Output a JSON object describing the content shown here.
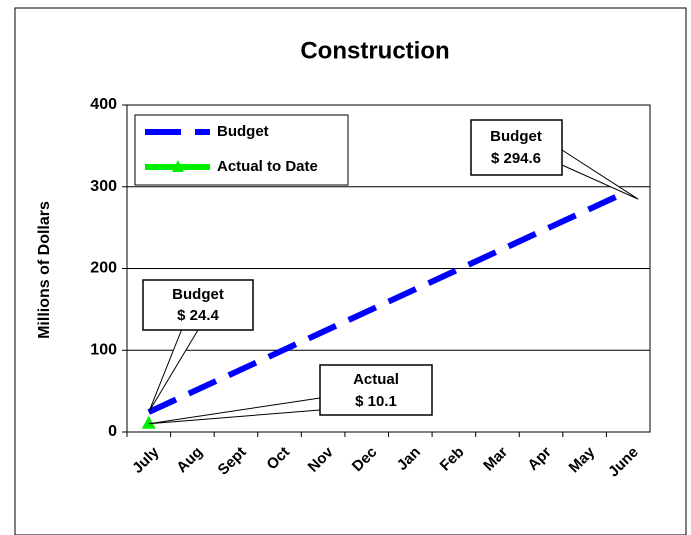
{
  "chart_data": {
    "type": "line",
    "title": "Construction",
    "y_label": "Millions of Dollars",
    "categories": [
      "July",
      "Aug",
      "Sept",
      "Oct",
      "Nov",
      "Dec",
      "Jan",
      "Feb",
      "Mar",
      "Apr",
      "May",
      "June"
    ],
    "series": [
      {
        "name": "Budget",
        "color": "#0000ff",
        "values": [
          24.4,
          49.0,
          73.5,
          98.1,
          122.6,
          147.2,
          171.8,
          196.3,
          220.9,
          245.5,
          270.0,
          294.6
        ],
        "value_labels": [
          "$ 24.4",
          null,
          null,
          null,
          null,
          null,
          null,
          null,
          null,
          null,
          null,
          "$ 294.6"
        ]
      },
      {
        "name": "Actual to Date",
        "color": "#00ee00",
        "values": [
          10.1,
          null,
          null,
          null,
          null,
          null,
          null,
          null,
          null,
          null,
          null,
          null
        ],
        "value_labels": [
          "$ 10.1",
          null,
          null,
          null,
          null,
          null,
          null,
          null,
          null,
          null,
          null,
          null
        ]
      }
    ],
    "annotation_heading": "Actual",
    "ylim": [
      0,
      400
    ],
    "yticks": [
      0,
      100,
      200,
      300,
      400
    ],
    "grid": true,
    "legend": "upper left"
  }
}
